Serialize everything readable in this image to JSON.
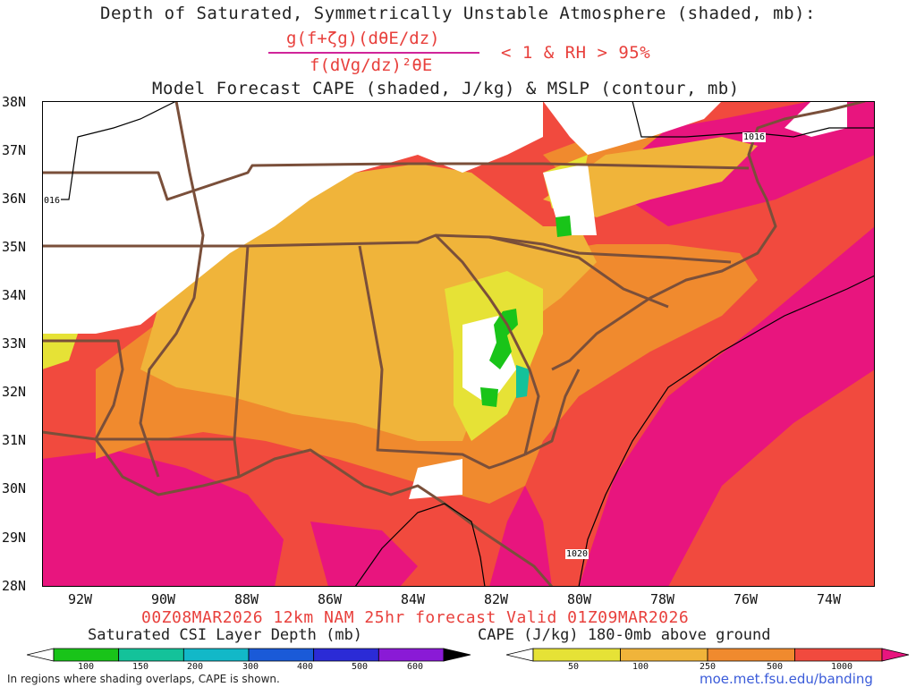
{
  "header": {
    "line1": "Depth of Saturated, Symmetrically Unstable Atmosphere (shaded, mb):",
    "fraction_numerator": "g(f+ζg)(dθE/dz)",
    "fraction_denominator": "f(dVg/dz)²θE",
    "condition": "< 1 & RH > 95%",
    "line3": "Model Forecast CAPE (shaded, J/kg) & MSLP (contour, mb)"
  },
  "map": {
    "lat_labels": [
      "38N",
      "37N",
      "36N",
      "35N",
      "34N",
      "33N",
      "32N",
      "31N",
      "30N",
      "29N",
      "28N"
    ],
    "lon_labels": [
      "92W",
      "90W",
      "88W",
      "86W",
      "84W",
      "82W",
      "80W",
      "78W",
      "76W",
      "74W"
    ],
    "isobar_labels": [
      "1016",
      "016",
      "1020"
    ],
    "colors": {
      "cape_50": "#e6e236",
      "cape_100": "#f0b43a",
      "cape_250": "#f08a2e",
      "cape_500": "#f14a3e",
      "cape_1000": "#e8157e",
      "csi_green": "#19c419",
      "state_border": "#7a4f3a"
    }
  },
  "footer": {
    "valid_line": "00Z08MAR2026 12km NAM 25hr forecast Valid 01Z09MAR2026",
    "left_bar_title": "Saturated CSI Layer Depth (mb)",
    "right_bar_title": "CAPE (J/kg) 180-0mb above ground",
    "left_ticks": [
      "100",
      "150",
      "200",
      "300",
      "400",
      "500",
      "600"
    ],
    "left_colors": [
      "#ffffff",
      "#19c419",
      "#14c29a",
      "#12b8c8",
      "#1a5ad8",
      "#2b2bd6",
      "#8a1ad6",
      "#000000"
    ],
    "right_ticks": [
      "50",
      "100",
      "250",
      "500",
      "1000"
    ],
    "right_colors": [
      "#ffffff",
      "#e6e236",
      "#f0b43a",
      "#f08a2e",
      "#f14a3e",
      "#e8157e"
    ],
    "note": "In regions where shading overlaps, CAPE is shown.",
    "url": "moe.met.fsu.edu/banding"
  }
}
